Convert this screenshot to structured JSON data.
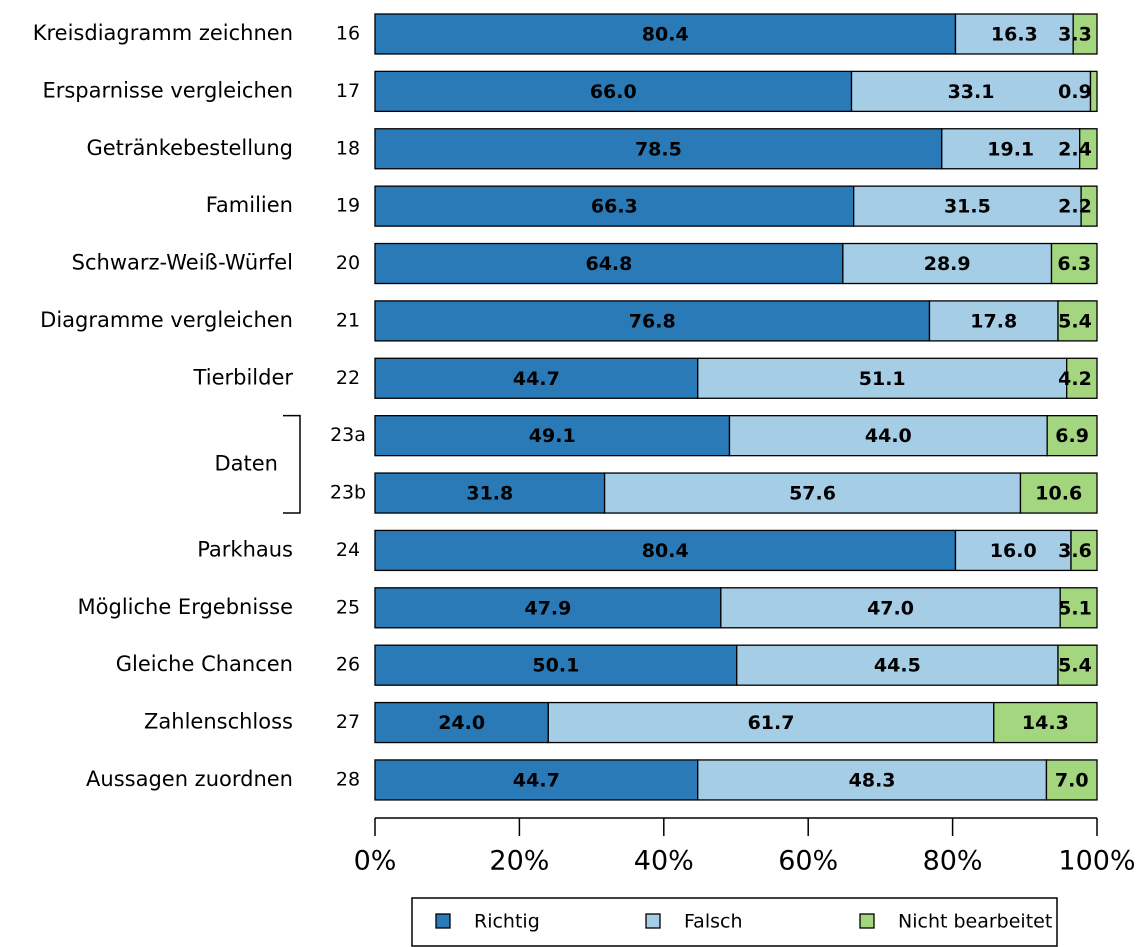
{
  "chart_data": {
    "type": "stacked-bar-horizontal",
    "categories": [
      "16",
      "17",
      "18",
      "19",
      "20",
      "21",
      "22",
      "23a",
      "23b",
      "24",
      "25",
      "26",
      "27",
      "28"
    ],
    "task_labels": [
      "Kreisdiagramm zeichnen",
      "Ersparnisse vergleichen",
      "Getränkebestellung",
      "Familien",
      "Schwarz-Weiß-Würfel",
      "Diagramme vergleichen",
      "Tierbilder",
      "Daten",
      null,
      "Parkhaus",
      "Mögliche Ergebnisse",
      "Gleiche Chancen",
      "Zahlenschloss",
      "Aussagen zuordnen"
    ],
    "series": [
      {
        "name": "Richtig",
        "color": "#2a7ab8",
        "values": [
          80.4,
          66.0,
          78.5,
          66.3,
          64.8,
          76.8,
          44.7,
          49.1,
          31.8,
          80.4,
          47.9,
          50.1,
          24.0,
          44.7
        ],
        "value_labels": [
          "80.4",
          "66.0",
          "78.5",
          "66.3",
          "64.8",
          "76.8",
          "44.7",
          "49.1",
          "31.8",
          "80.4",
          "47.9",
          "50.1",
          "24.0",
          "44.7"
        ]
      },
      {
        "name": "Falsch",
        "color": "#a6cde6",
        "values": [
          16.3,
          33.1,
          19.1,
          31.5,
          28.9,
          17.8,
          51.1,
          44.0,
          57.6,
          16.0,
          47.0,
          44.5,
          61.7,
          48.3
        ],
        "value_labels": [
          "16.3",
          "33.1",
          "19.1",
          "31.5",
          "28.9",
          "17.8",
          "51.1",
          "44.0",
          "57.6",
          "16.0",
          "47.0",
          "44.5",
          "61.7",
          "48.3"
        ]
      },
      {
        "name": "Nicht bearbeitet",
        "color": "#a3d67f",
        "values": [
          3.3,
          0.9,
          2.4,
          2.2,
          6.3,
          5.4,
          4.2,
          6.9,
          10.6,
          3.6,
          5.1,
          5.4,
          14.3,
          7.0
        ],
        "value_labels": [
          "3.3",
          "0.9",
          "2.4",
          "2.2",
          "6.3",
          "5.4",
          "4.2",
          "6.9",
          "10.6",
          "3.6",
          "5.1",
          "5.4",
          "14.3",
          "7.0"
        ]
      }
    ],
    "xlim": [
      0,
      100
    ],
    "xticks": [
      {
        "value": 0,
        "label": "0%"
      },
      {
        "value": 20,
        "label": "20%"
      },
      {
        "value": 40,
        "label": "40%"
      },
      {
        "value": 60,
        "label": "60%"
      },
      {
        "value": 80,
        "label": "80%"
      },
      {
        "value": 100,
        "label": "100%"
      }
    ],
    "legend": "bottom"
  }
}
